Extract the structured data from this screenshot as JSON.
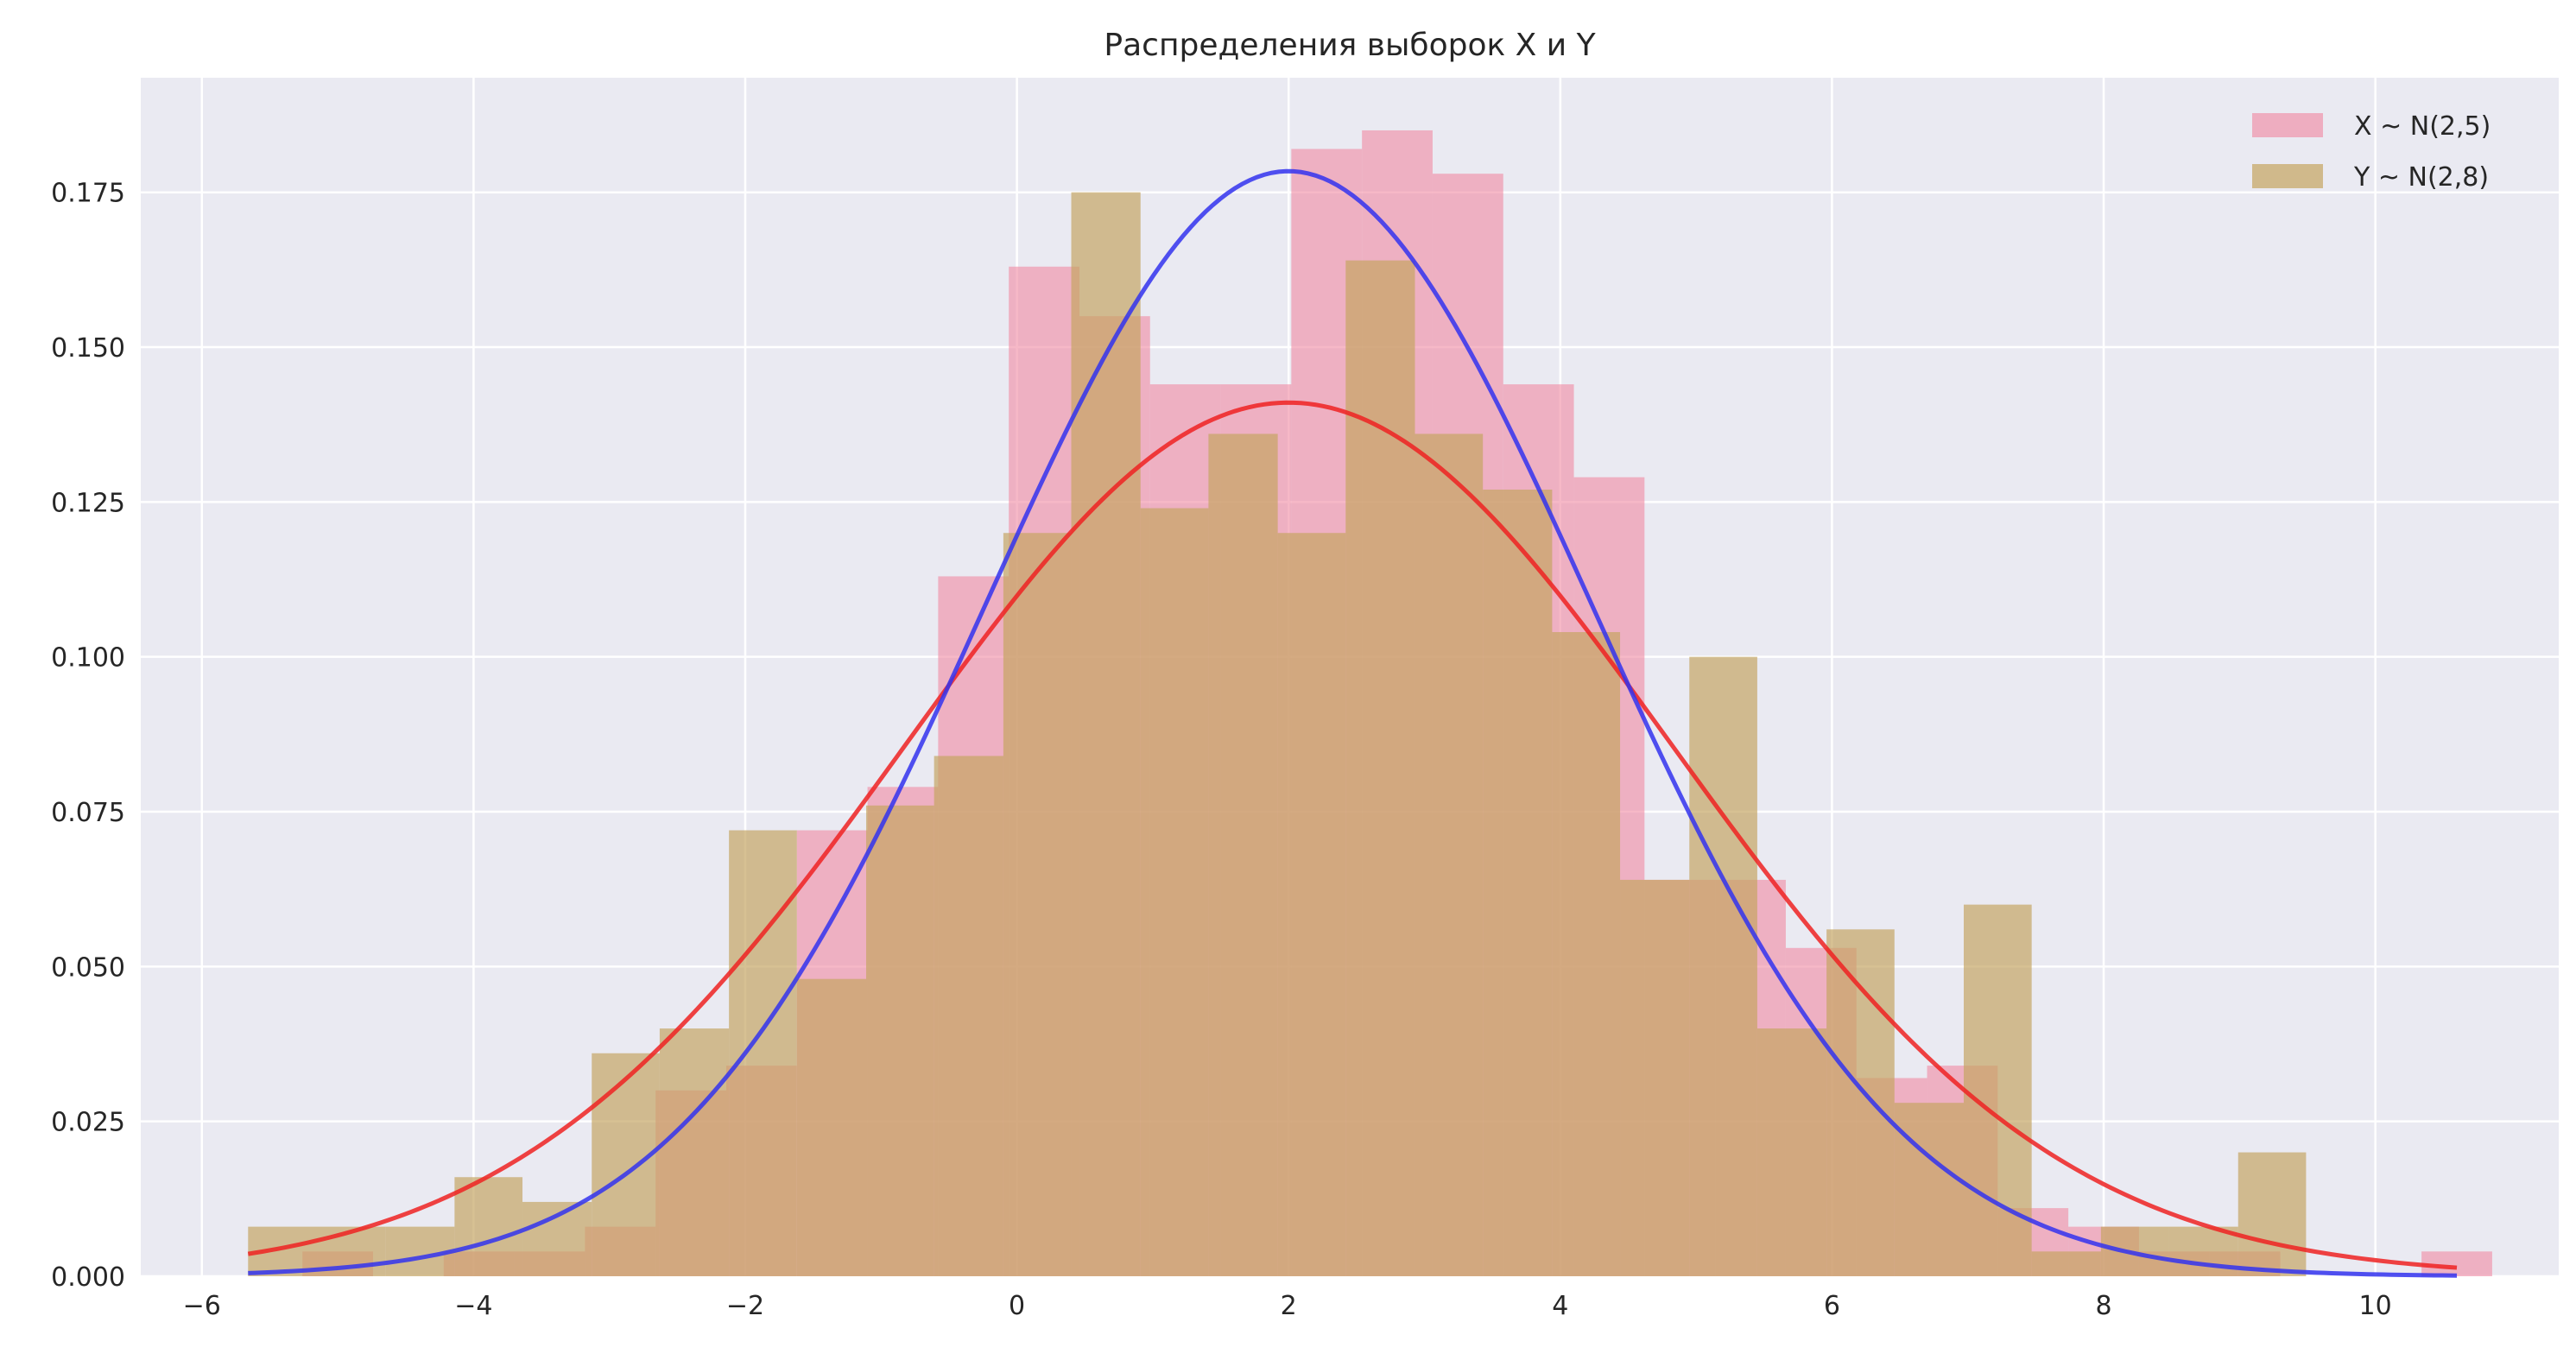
{
  "chart_data": {
    "type": "bar",
    "title": "Распределения выборок X и Y",
    "xlabel": "",
    "ylabel": "",
    "xlim": [
      -6.45,
      11.35
    ],
    "ylim": [
      0,
      0.1935
    ],
    "x_ticks": [
      -6,
      -4,
      -2,
      0,
      2,
      4,
      6,
      8,
      10
    ],
    "x_tick_labels": [
      "−6",
      "−4",
      "−2",
      "0",
      "2",
      "4",
      "6",
      "8",
      "10"
    ],
    "y_ticks": [
      0,
      0.025,
      0.05,
      0.075,
      0.1,
      0.125,
      0.15,
      0.175
    ],
    "y_tick_labels": [
      "0.000",
      "0.025",
      "0.050",
      "0.075",
      "0.100",
      "0.125",
      "0.150",
      "0.175"
    ],
    "grid": true,
    "legend_position": "top-right",
    "colors": {
      "background": "#eaeaf2",
      "grid": "#ffffff",
      "hist_x": "#f08ca5",
      "hist_y": "#c4a460",
      "pdf_x": "#3333ee",
      "pdf_y": "#ee2222"
    },
    "series": [
      {
        "name": "X ~ N(2,5)",
        "kind": "histogram",
        "bin_edges": [
          -5.26,
          -4.74,
          -4.22,
          -3.7,
          -3.18,
          -2.66,
          -2.14,
          -1.62,
          -1.1,
          -0.58,
          -0.06,
          0.46,
          0.98,
          1.5,
          2.02,
          2.54,
          3.06,
          3.58,
          4.1,
          4.62,
          5.14,
          5.66,
          6.18,
          6.7,
          7.22,
          7.74,
          8.26,
          8.78,
          9.3,
          9.82,
          10.34,
          10.86
        ],
        "values": [
          0.004,
          0,
          0.004,
          0.004,
          0.008,
          0.03,
          0.034,
          0.072,
          0.079,
          0.113,
          0.163,
          0.155,
          0.144,
          0.144,
          0.182,
          0.185,
          0.178,
          0.144,
          0.129,
          0.064,
          0.064,
          0.053,
          0.032,
          0.034,
          0.011,
          0.008,
          0.004,
          0.004,
          0,
          0,
          0.004
        ]
      },
      {
        "name": "Y ~ N(2,8)",
        "kind": "histogram",
        "bin_edges": [
          -5.66,
          -5.15,
          -4.65,
          -4.14,
          -3.64,
          -3.13,
          -2.63,
          -2.12,
          -1.62,
          -1.11,
          -0.61,
          -0.1,
          0.4,
          0.91,
          1.41,
          1.92,
          2.42,
          2.93,
          3.43,
          3.94,
          4.44,
          4.95,
          5.45,
          5.96,
          6.46,
          6.97,
          7.47,
          7.98,
          8.48,
          8.99,
          9.49,
          10.0,
          10.5
        ],
        "values": [
          0.008,
          0.008,
          0.008,
          0.016,
          0.012,
          0.036,
          0.04,
          0.072,
          0.048,
          0.076,
          0.084,
          0.12,
          0.175,
          0.124,
          0.136,
          0.12,
          0.164,
          0.136,
          0.127,
          0.104,
          0.064,
          0.1,
          0.04,
          0.056,
          0.028,
          0.06,
          0.004,
          0.008,
          0.008,
          0.02,
          0,
          0
        ]
      },
      {
        "name": "N(2,5) pdf",
        "kind": "pdf",
        "mean": 2,
        "variance": 5,
        "x_range": [
          -5.66,
          10.6
        ]
      },
      {
        "name": "N(2,8) pdf",
        "kind": "pdf",
        "mean": 2,
        "variance": 8,
        "x_range": [
          -5.66,
          10.6
        ]
      }
    ]
  }
}
